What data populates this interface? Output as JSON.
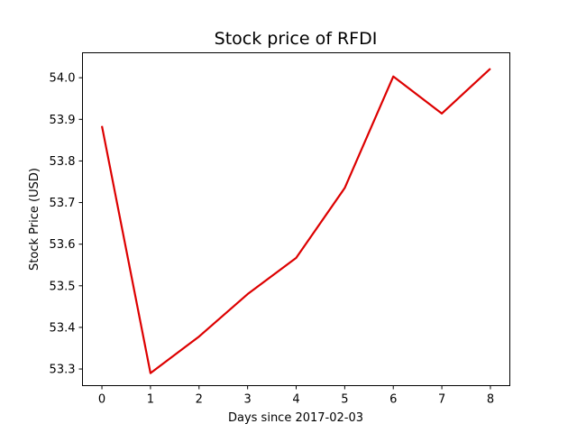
{
  "chart_data": {
    "type": "line",
    "title": "Stock price of RFDI",
    "xlabel": "Days since 2017-02-03",
    "ylabel": "Stock Price (USD)",
    "x": [
      0,
      1,
      2,
      3,
      4,
      5,
      6,
      7,
      8
    ],
    "series": [
      {
        "color": "#dd0000",
        "values": [
          53.884,
          53.29,
          53.378,
          53.48,
          53.567,
          53.735,
          54.003,
          53.914,
          54.022
        ]
      }
    ],
    "xlim": [
      -0.4,
      8.4
    ],
    "ylim": [
      53.26,
      54.06
    ],
    "xticks": [
      "0",
      "1",
      "2",
      "3",
      "4",
      "5",
      "6",
      "7",
      "8"
    ],
    "yticks": [
      "53.3",
      "53.4",
      "53.5",
      "53.6",
      "53.7",
      "53.8",
      "53.9",
      "54.0"
    ],
    "grid": false
  }
}
